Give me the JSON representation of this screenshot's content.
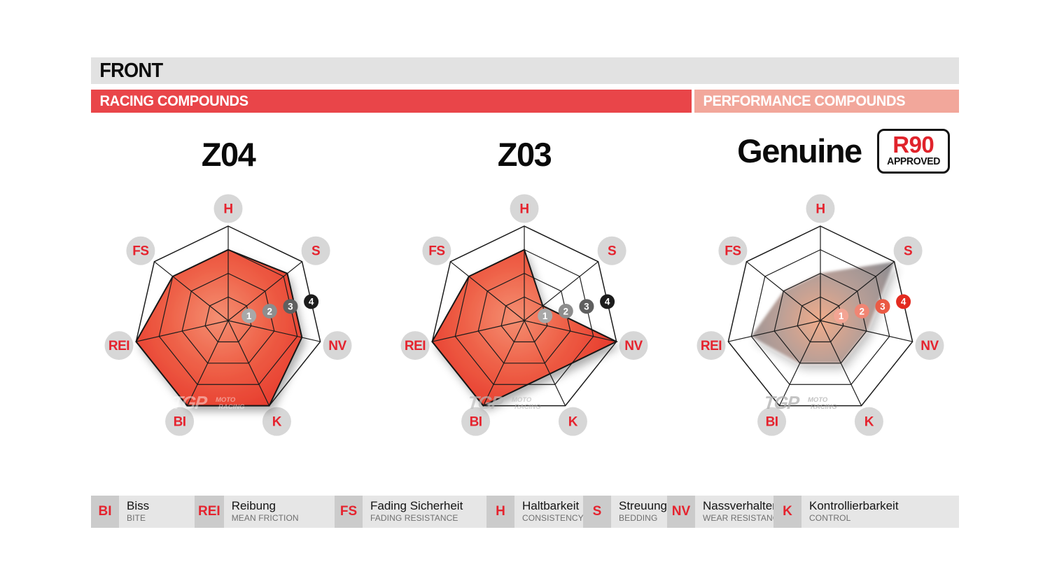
{
  "header": {
    "title": "FRONT",
    "racing_label": "RACING COMPOUNDS",
    "performance_label": "PERFORMANCE COMPOUNDS"
  },
  "badge": {
    "line1": "R90",
    "line2": "APPROVED"
  },
  "watermark": {
    "logo": "TGP",
    "sub1": "MOTO",
    "sub2": "RACING"
  },
  "colors": {
    "header_bar_bg": "#e2e2e2",
    "racing_bar": "#e94549",
    "performance_bar": "#f2a79b",
    "badge_red": "#e0232b",
    "label_circle": "#d7d7d7",
    "label_text": "#e5232e",
    "grid_line": "#1c1c1c",
    "racing_fill_center": "#f48f72",
    "racing_fill_mid": "#ee5f46",
    "racing_fill_edge": "#e6382b",
    "racing_markers": [
      "#a8a8a8",
      "#8d8d8d",
      "#5f5f5f",
      "#1c1c1c"
    ],
    "genuine_fill_center": "#f0a884",
    "genuine_fill_mid": "#b59a92",
    "genuine_fill_edge": "#8e8a8d",
    "genuine_markers": [
      "#f3a493",
      "#f08573",
      "#ea5a44",
      "#e32b20"
    ],
    "legend_abbr_bg": "#cbcbcb",
    "legend_item_bg": "#e6e6e6",
    "legend_en_text": "#6f6f6f"
  },
  "chart_data": [
    {
      "type": "radar",
      "title": "Z04",
      "group": "racing",
      "axes": [
        "H",
        "S",
        "NV",
        "K",
        "BI",
        "REI",
        "FS"
      ],
      "values": [
        3,
        3.2,
        3.2,
        4,
        4,
        4,
        3
      ],
      "scale_ticks": [
        "1",
        "2",
        "3",
        "4"
      ],
      "scale_range": [
        0,
        4
      ],
      "grid": true,
      "legend_position": "none"
    },
    {
      "type": "radar",
      "title": "Z03",
      "group": "racing",
      "axes": [
        "H",
        "S",
        "NV",
        "K",
        "BI",
        "REI",
        "FS"
      ],
      "values": [
        3,
        1,
        4,
        2.5,
        4,
        4,
        3
      ],
      "scale_ticks": [
        "1",
        "2",
        "3",
        "4"
      ],
      "scale_range": [
        0,
        4
      ],
      "grid": true,
      "legend_position": "none"
    },
    {
      "type": "radar",
      "title": "Genuine",
      "group": "performance",
      "badge": "R90 APPROVED",
      "axes": [
        "H",
        "S",
        "NV",
        "K",
        "BI",
        "REI",
        "FS"
      ],
      "values": [
        2,
        4,
        2,
        2,
        2,
        3,
        2
      ],
      "scale_ticks": [
        "1",
        "2",
        "3",
        "4"
      ],
      "scale_range": [
        0,
        4
      ],
      "grid": true,
      "legend_position": "none"
    }
  ],
  "legend": {
    "items": [
      {
        "abbr": "BI",
        "de": "Biss",
        "en": "BITE"
      },
      {
        "abbr": "REI",
        "de": "Reibung",
        "en": "MEAN FRICTION"
      },
      {
        "abbr": "FS",
        "de": "Fading Sicherheit",
        "en": "FADING RESISTANCE"
      },
      {
        "abbr": "H",
        "de": "Haltbarkeit",
        "en": "CONSISTENCY"
      },
      {
        "abbr": "S",
        "de": "Streuung",
        "en": "BEDDING"
      },
      {
        "abbr": "NV",
        "de": "Nassverhalten",
        "en": "WEAR RESISTANCE"
      },
      {
        "abbr": "K",
        "de": "Kontrollierbarkeit",
        "en": "CONTROL"
      }
    ]
  }
}
